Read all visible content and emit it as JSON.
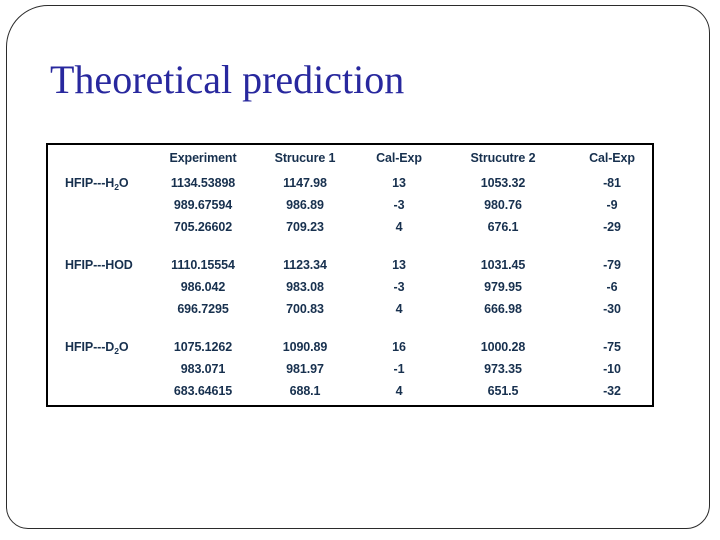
{
  "slide": {
    "title": "Theoretical prediction"
  },
  "colors": {
    "title_text": "#28289E",
    "table_text": "#17304E",
    "table_border": "#000000",
    "slide_border": "#2b2b2b",
    "background": "#ffffff"
  },
  "table": {
    "headers": [
      "Experiment",
      "Strucure 1",
      "Cal-Exp",
      "Strucutre 2",
      "Cal-Exp"
    ],
    "groups": [
      {
        "label": {
          "pre": "HFIP---H",
          "sub": "2",
          "post": "O"
        },
        "rows": [
          [
            "1134.53898",
            "1147.98",
            "13",
            "1053.32",
            "-81"
          ],
          [
            "989.67594",
            "986.89",
            "-3",
            "980.76",
            "-9"
          ],
          [
            "705.26602",
            "709.23",
            "4",
            "676.1",
            "-29"
          ]
        ]
      },
      {
        "label": {
          "pre": "HFIP---HOD",
          "sub": "",
          "post": ""
        },
        "rows": [
          [
            "1110.15554",
            "1123.34",
            "13",
            "1031.45",
            "-79"
          ],
          [
            "986.042",
            "983.08",
            "-3",
            "979.95",
            "-6"
          ],
          [
            "696.7295",
            "700.83",
            "4",
            "666.98",
            "-30"
          ]
        ]
      },
      {
        "label": {
          "pre": "HFIP---D",
          "sub": "2",
          "post": "O"
        },
        "rows": [
          [
            "1075.1262",
            "1090.89",
            "16",
            "1000.28",
            "-75"
          ],
          [
            "983.071",
            "981.97",
            "-1",
            "973.35",
            "-10"
          ],
          [
            "683.64615",
            "688.1",
            "4",
            "651.5",
            "-32"
          ]
        ]
      }
    ]
  }
}
